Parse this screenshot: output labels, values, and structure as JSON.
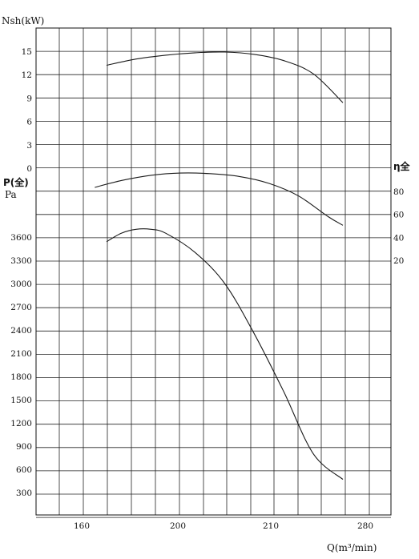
{
  "chart_data": {
    "type": "line",
    "title": "",
    "xlabel": "Q(m³/min)",
    "x_ticks": [
      160,
      200,
      210,
      280
    ],
    "axes": {
      "power": {
        "label": "Nsh(kW)",
        "ticks": [
          15,
          12,
          9,
          6,
          3,
          0
        ]
      },
      "pressure": {
        "label": "P(全)",
        "unit": "Pa",
        "ticks": [
          3600,
          3300,
          3000,
          2700,
          2400,
          2100,
          1800,
          1500,
          1200,
          900,
          600,
          300
        ]
      },
      "efficiency": {
        "label": "η全",
        "ticks": [
          80,
          60,
          40,
          20
        ]
      }
    },
    "grid": true,
    "series": [
      {
        "axis": "power",
        "x": [
          170,
          180,
          190,
          200,
          210,
          220,
          230,
          240,
          250
        ],
        "values": [
          13.2,
          14.0,
          14.5,
          14.8,
          14.9,
          14.6,
          13.8,
          12.1,
          8.4
        ]
      },
      {
        "axis": "efficiency",
        "x": [
          166,
          175,
          185,
          195,
          205,
          215,
          225,
          235,
          245,
          250
        ],
        "values": [
          83.5,
          89.5,
          94.0,
          96.0,
          95.5,
          93.0,
          87.0,
          76.0,
          58.0,
          50.5
        ]
      },
      {
        "axis": "pressure",
        "x": [
          170,
          175,
          180,
          185,
          190,
          200,
          210,
          220,
          230,
          240,
          250
        ],
        "values": [
          3540,
          3650,
          3700,
          3700,
          3650,
          3400,
          3000,
          2350,
          1600,
          800,
          470
        ]
      }
    ]
  }
}
